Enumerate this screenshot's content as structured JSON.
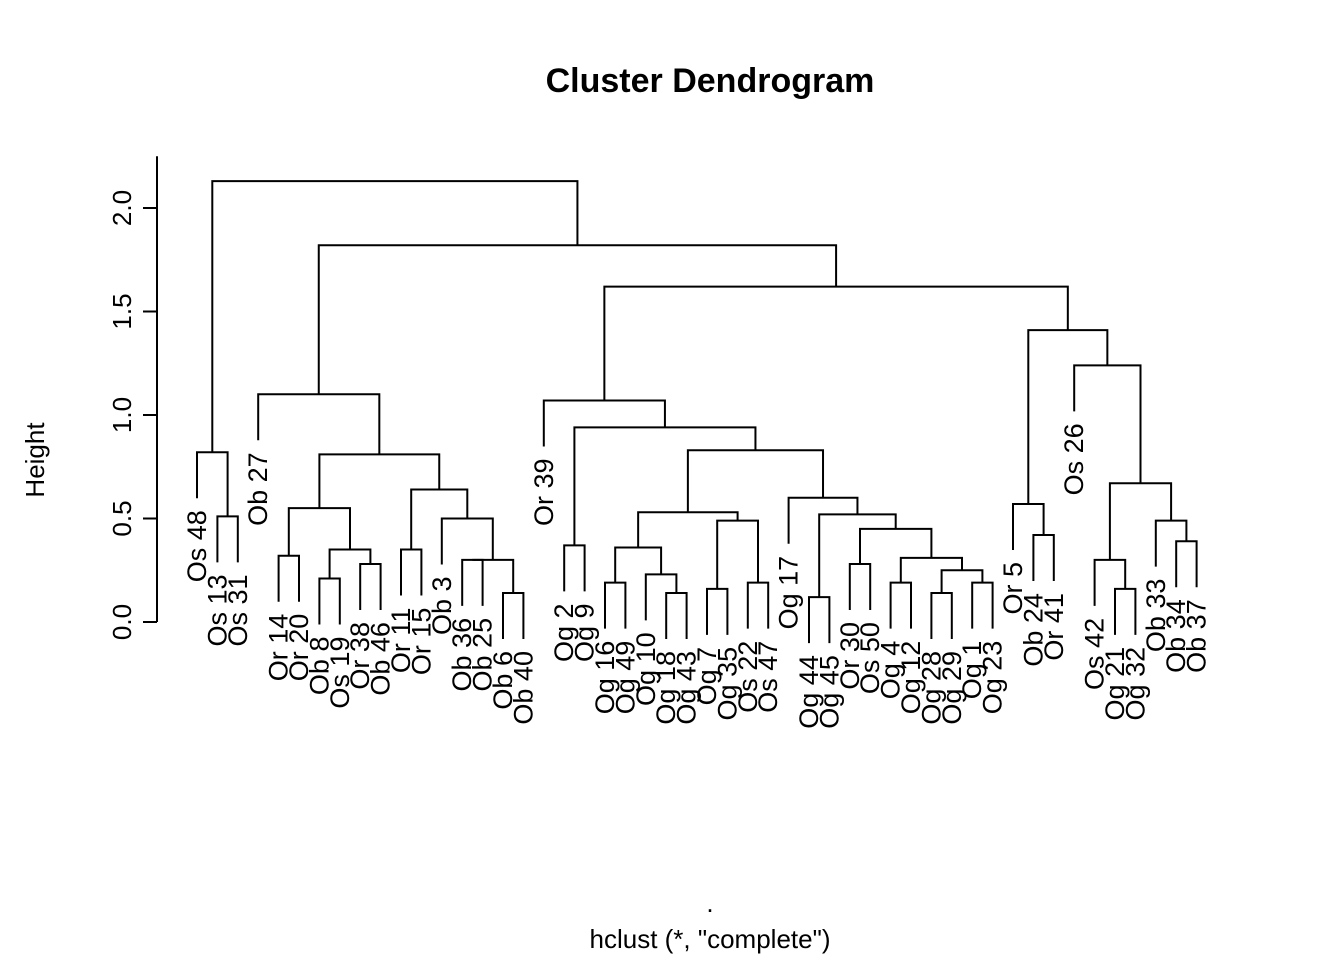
{
  "chart_data": {
    "type": "dendrogram",
    "title": "Cluster Dendrogram",
    "ylabel": "Height",
    "xlabel": "hclust (*, \"complete\")",
    "sublabel": ".",
    "ylim": [
      0,
      2.2
    ],
    "yticks": [
      "0.0",
      "0.5",
      "1.0",
      "1.5",
      "2.0"
    ],
    "ytick_values": [
      0,
      0.5,
      1.0,
      1.5,
      2.0
    ],
    "leaves": [
      "Os 48",
      "Os 13",
      "Os 31",
      "Ob 27",
      "Or 14",
      "Or 20",
      "Ob 8",
      "Os 19",
      "Or 38",
      "Ob 46",
      "Or 11",
      "Or 15",
      "Ob 3",
      "Ob 36",
      "Ob 25",
      "Ob 6",
      "Ob 40",
      "Or 39",
      "Og 2",
      "Og 9",
      "Og 16",
      "Og 49",
      "Og 10",
      "Og 18",
      "Og 43",
      "Og 7",
      "Og 35",
      "Os 22",
      "Os 47",
      "Og 17",
      "Og 44",
      "Og 45",
      "Or 30",
      "Os 50",
      "Og 4",
      "Og 12",
      "Og 28",
      "Og 29",
      "Og 1",
      "Og 23",
      "Or 5",
      "Ob 24",
      "Or 41",
      "Os 26",
      "Os 42",
      "Og 21",
      "Og 32",
      "Ob 33",
      "Ob 34",
      "Ob 37"
    ],
    "merges": [
      {
        "left": "Os 13",
        "right": "Os 31",
        "height": 0.51
      },
      {
        "left": "Os 48",
        "right": "(Os 13, Os 31)",
        "height": 0.82
      },
      {
        "left": "Or 14",
        "right": "Or 20",
        "height": 0.32
      },
      {
        "left": "Ob 8",
        "right": "Os 19",
        "height": 0.21
      },
      {
        "left": "Or 38",
        "right": "Ob 46",
        "height": 0.28
      },
      {
        "left": "(Ob 8, Os 19)",
        "right": "(Or 38, Ob 46)",
        "height": 0.35
      },
      {
        "left": "(Or 14, Or 20)",
        "right": "(Ob 8 .. Ob 46)",
        "height": 0.55
      },
      {
        "left": "Or 11",
        "right": "Or 15",
        "height": 0.35
      },
      {
        "left": "Ob 25",
        "right": "Ob 36",
        "height": 0.3
      },
      {
        "left": "Ob 6",
        "right": "Ob 40",
        "height": 0.14
      },
      {
        "left": "(Ob 25, Ob 36)",
        "right": "(Ob 6, Ob 40)",
        "height": 0.3
      },
      {
        "left": "Ob 3",
        "right": "(Ob 36 .. Ob 40)",
        "height": 0.5
      },
      {
        "left": "(Or 11, Or 15)",
        "right": "(Ob 3 .. Ob 40)",
        "height": 0.64
      },
      {
        "left": "(Or 14 .. Ob 46)",
        "right": "(Or 11 .. Ob 40)",
        "height": 0.81
      },
      {
        "left": "Ob 27",
        "right": "(Or 14 .. Ob 40)",
        "height": 1.1
      },
      {
        "left": "Og 2",
        "right": "Og 9",
        "height": 0.37
      },
      {
        "left": "Og 16",
        "right": "Og 49",
        "height": 0.19
      },
      {
        "left": "Og 18",
        "right": "Og 43",
        "height": 0.14
      },
      {
        "left": "Og 10",
        "right": "(Og 18, Og 43)",
        "height": 0.23
      },
      {
        "left": "(Og 16, Og 49)",
        "right": "(Og 10 .. Og 43)",
        "height": 0.36
      },
      {
        "left": "Og 7",
        "right": "Og 35",
        "height": 0.16
      },
      {
        "left": "Os 22",
        "right": "Os 47",
        "height": 0.19
      },
      {
        "left": "(Og 7, Og 35)",
        "right": "(Os 22, Os 47)",
        "height": 0.49
      },
      {
        "left": "(Og 16 .. Og 43)",
        "right": "(Og 7 .. Os 47)",
        "height": 0.53
      },
      {
        "left": "Og 44",
        "right": "Og 45",
        "height": 0.12
      },
      {
        "left": "Or 30",
        "right": "Os 50",
        "height": 0.28
      },
      {
        "left": "Og 4",
        "right": "Og 12",
        "height": 0.19
      },
      {
        "left": "Og 28",
        "right": "Og 29",
        "height": 0.14
      },
      {
        "left": "Og 1",
        "right": "Og 23",
        "height": 0.19
      },
      {
        "left": "(Og 28, Og 29)",
        "right": "(Og 1, Og 23)",
        "height": 0.25
      },
      {
        "left": "(Og 4, Og 12)",
        "right": "(Og 28 .. Og 23)",
        "height": 0.31
      },
      {
        "left": "(Or 30, Os 50)",
        "right": "(Og 4 .. Og 23)",
        "height": 0.45
      },
      {
        "left": "(Og 44, Og 45)",
        "right": "(Or 30 .. Og 23)",
        "height": 0.52
      },
      {
        "left": "Og 17",
        "right": "(Og 44 .. Og 23)",
        "height": 0.6
      },
      {
        "left": "(Og 16 .. Os 47)",
        "right": "(Og 17 .. Og 23)",
        "height": 0.83
      },
      {
        "left": "(Og 2, Og 9)",
        "right": "(Og 16 .. Og 23)",
        "height": 0.94
      },
      {
        "left": "Or 39",
        "right": "(Og 2 .. Og 23)",
        "height": 1.07
      },
      {
        "left": "Ob 24",
        "right": "Or 41",
        "height": 0.42
      },
      {
        "left": "Or 5",
        "right": "(Ob 24, Or 41)",
        "height": 0.57
      },
      {
        "left": "Og 21",
        "right": "Og 32",
        "height": 0.16
      },
      {
        "left": "Os 42",
        "right": "(Og 21, Og 32)",
        "height": 0.3
      },
      {
        "left": "Ob 34",
        "right": "Ob 37",
        "height": 0.39
      },
      {
        "left": "Ob 33",
        "right": "(Ob 34, Ob 37)",
        "height": 0.49
      },
      {
        "left": "(Os 42 .. Og 32)",
        "right": "(Ob 33 .. Ob 37)",
        "height": 0.67
      },
      {
        "left": "Os 26",
        "right": "(Os 42 .. Ob 37)",
        "height": 1.24
      },
      {
        "left": "(Or 5 .. Or 41)",
        "right": "(Os 26 .. Ob 37)",
        "height": 1.41
      },
      {
        "left": "(Or 39 .. Og 23)",
        "right": "(Or 5 .. Ob 37)",
        "height": 1.62
      },
      {
        "left": "(Ob 27 .. Ob 40)",
        "right": "(Or 39 .. Ob 37)",
        "height": 1.82
      },
      {
        "left": "(Os 48 .. Os 31)",
        "right": "(Ob 27 .. Ob 37)",
        "height": 2.13
      }
    ]
  }
}
